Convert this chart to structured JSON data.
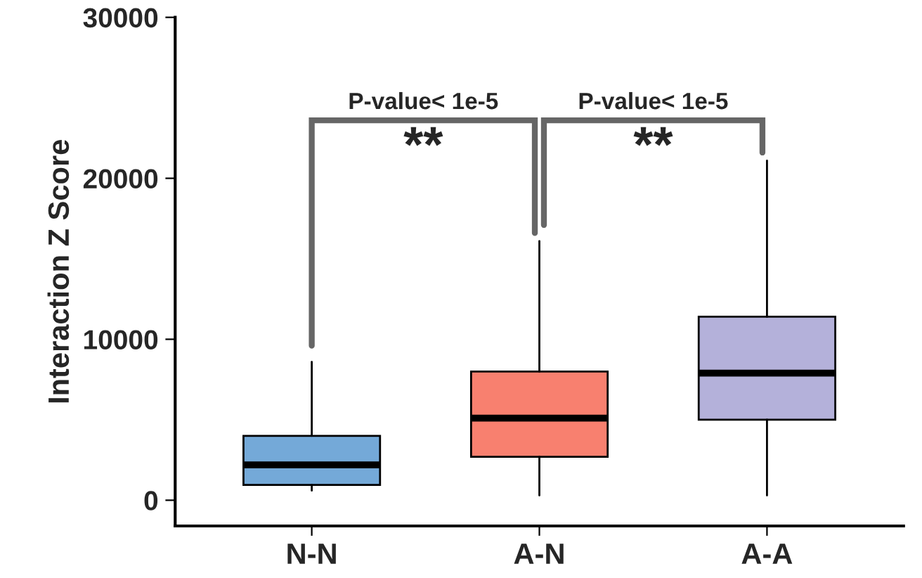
{
  "chart_data": {
    "type": "box",
    "ylabel": "Interaction Z Score",
    "categories": [
      "N-N",
      "A-N",
      "A-A"
    ],
    "colors": [
      "#74a9d8",
      "#f8806f",
      "#b4b1da"
    ],
    "boxes": [
      {
        "low": 600,
        "q1": 950,
        "median": 2200,
        "q3": 4000,
        "high": 8600
      },
      {
        "low": 300,
        "q1": 2700,
        "median": 5100,
        "q3": 8000,
        "high": 16100
      },
      {
        "low": 300,
        "q1": 5000,
        "median": 7900,
        "q3": 11400,
        "high": 21100
      }
    ],
    "ylim": [
      -1600,
      30000
    ],
    "yticks": [
      0,
      10000,
      20000,
      30000
    ],
    "annotations": [
      "P-value< 1e-5",
      "**",
      "P-value< 1e-5",
      "**"
    ],
    "grid": false
  }
}
